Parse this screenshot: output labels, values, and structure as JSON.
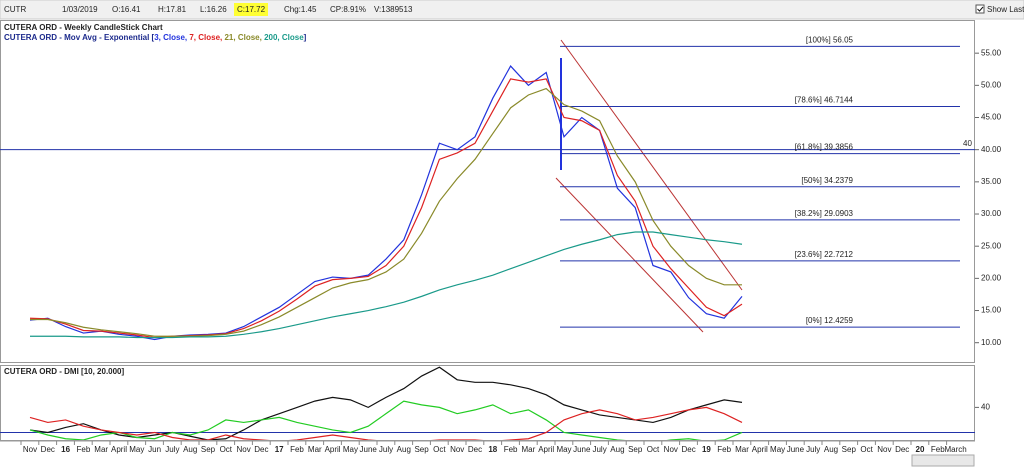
{
  "header": {
    "symbol": "CUTR",
    "date": "1/03/2019",
    "open": "O:16.41",
    "high": "H:17.81",
    "low": "L:16.26",
    "close": "C:17.72",
    "change": "Chg:1.45",
    "change_pct": "CP:8.91%",
    "volume": "V:1389513",
    "show_last": "Show Last"
  },
  "chart_data": [
    {
      "type": "line",
      "title": "CUTERA ORD - Weekly CandleStick Chart",
      "legend": [
        {
          "text": "CUTERA ORD - Mov Avg - Exponential [",
          "color": "#1c2a8c"
        },
        {
          "text": "3, Close, ",
          "color": "#2233dd"
        },
        {
          "text": "7, Close, ",
          "color": "#dd2222"
        },
        {
          "text": "21, Close, ",
          "color": "#8a8a2a"
        },
        {
          "text": "200, Close",
          "color": "#1a9a8a"
        },
        {
          "text": "]",
          "color": "#1c2a8c"
        }
      ],
      "categories": [
        "Nov",
        "Dec",
        "16",
        "Feb",
        "Mar",
        "April",
        "May",
        "Jun",
        "July",
        "Aug",
        "Sep",
        "Oct",
        "Nov",
        "Dec",
        "17",
        "Feb",
        "Mar",
        "April",
        "May",
        "June",
        "July",
        "Aug",
        "Sep",
        "Oct",
        "Nov",
        "Dec",
        "18",
        "Feb",
        "Mar",
        "April",
        "May",
        "June",
        "July",
        "Aug",
        "Sep",
        "Oct",
        "Nov",
        "Dec",
        "19",
        "Feb",
        "Mar",
        "April",
        "May",
        "June",
        "July",
        "Aug",
        "Sep",
        "Oct",
        "Nov",
        "Dec",
        "20",
        "Feb",
        "March"
      ],
      "series": [
        {
          "color": "#2233dd",
          "values": [
            13.5,
            13.8,
            12.5,
            11.5,
            11.8,
            11.3,
            11.0,
            10.5,
            11.0,
            11.2,
            11.3,
            11.5,
            12.5,
            14.0,
            15.5,
            17.5,
            19.5,
            20.2,
            20.0,
            20.5,
            23.0,
            26.0,
            33.0,
            41.0,
            40.0,
            42.0,
            48.0,
            53.0,
            50.0,
            52.0,
            42.0,
            45.0,
            43.0,
            34.0,
            31.0,
            22.0,
            21.0,
            17.0,
            14.5,
            13.8,
            17.2,
            null,
            null,
            null,
            null,
            null,
            null,
            null,
            null,
            null,
            null,
            null,
            null
          ]
        },
        {
          "color": "#dd2222",
          "values": [
            13.8,
            13.7,
            12.9,
            11.9,
            11.8,
            11.5,
            11.2,
            10.8,
            11.0,
            11.1,
            11.2,
            11.4,
            12.2,
            13.4,
            14.9,
            16.8,
            18.8,
            19.8,
            20.0,
            20.3,
            22.0,
            25.0,
            31.0,
            38.5,
            39.5,
            41.0,
            46.0,
            51.0,
            50.5,
            51.0,
            45.0,
            44.5,
            43.0,
            36.0,
            32.0,
            25.0,
            21.5,
            18.5,
            15.5,
            14.2,
            16.0,
            null,
            null,
            null,
            null,
            null,
            null,
            null,
            null,
            null,
            null,
            null,
            null
          ]
        },
        {
          "color": "#8a8a2a",
          "values": [
            13.6,
            13.6,
            13.1,
            12.4,
            12.0,
            11.7,
            11.4,
            11.0,
            11.0,
            11.0,
            11.1,
            11.3,
            11.8,
            12.8,
            14.0,
            15.5,
            17.0,
            18.5,
            19.3,
            19.8,
            21.0,
            23.0,
            27.0,
            32.0,
            35.5,
            38.5,
            42.5,
            46.5,
            48.5,
            49.5,
            47.0,
            46.0,
            44.5,
            39.0,
            35.0,
            29.0,
            25.0,
            22.0,
            20.0,
            19.0,
            19.0,
            null,
            null,
            null,
            null,
            null,
            null,
            null,
            null,
            null,
            null,
            null,
            null
          ]
        },
        {
          "color": "#1a9a8a",
          "values": [
            11.0,
            11.0,
            11.0,
            10.9,
            10.9,
            10.9,
            10.8,
            10.8,
            10.8,
            10.9,
            10.9,
            11.0,
            11.3,
            11.7,
            12.2,
            12.8,
            13.4,
            14.0,
            14.5,
            15.0,
            15.6,
            16.3,
            17.2,
            18.2,
            19.0,
            19.7,
            20.5,
            21.5,
            22.5,
            23.5,
            24.5,
            25.3,
            26.0,
            26.8,
            27.2,
            27.2,
            26.8,
            26.4,
            26.0,
            25.7,
            25.3,
            null,
            null,
            null,
            null,
            null,
            null,
            null,
            null,
            null,
            null,
            null,
            null
          ]
        }
      ],
      "ylim": [
        7,
        60
      ],
      "yticks": [
        {
          "value": 10,
          "label": "10.00"
        },
        {
          "value": 15,
          "label": "15.00"
        },
        {
          "value": 20,
          "label": "20.00"
        },
        {
          "value": 25,
          "label": "25.00"
        },
        {
          "value": 30,
          "label": "30.00"
        },
        {
          "value": 35,
          "label": "35.00"
        },
        {
          "value": 40,
          "label": "40.00"
        },
        {
          "value": 45,
          "label": "45.00"
        },
        {
          "value": 50,
          "label": "50.00"
        },
        {
          "value": 55,
          "label": "55.00"
        }
      ],
      "hline": 40,
      "fib": [
        {
          "label": "[100%]",
          "value": 56.05
        },
        {
          "label": "[78.6%]",
          "value": 46.7144
        },
        {
          "label": "[61.8%]",
          "value": 39.3856
        },
        {
          "label": "[50%]",
          "value": 34.2379
        },
        {
          "label": "[38.2%]",
          "value": 29.0903
        },
        {
          "label": "[23.6%]",
          "value": 22.7212
        },
        {
          "label": "[0%]",
          "value": 12.4259
        }
      ]
    },
    {
      "type": "line",
      "title": "CUTERA ORD - DMI [10, 20.000]",
      "series": [
        {
          "color": "#111111",
          "values": [
            22,
            20,
            24,
            27,
            22,
            18,
            16,
            18,
            20,
            17,
            14,
            15,
            22,
            30,
            35,
            40,
            45,
            48,
            46,
            40,
            48,
            55,
            65,
            72,
            62,
            60,
            60,
            58,
            55,
            50,
            42,
            38,
            34,
            32,
            30,
            28,
            32,
            38,
            42,
            46,
            44,
            null,
            null,
            null,
            null,
            null,
            null,
            null,
            null,
            null,
            null,
            null,
            null
          ]
        },
        {
          "color": "#22cc22",
          "values": [
            22,
            18,
            15,
            14,
            18,
            20,
            16,
            15,
            20,
            18,
            22,
            30,
            28,
            30,
            32,
            28,
            25,
            22,
            20,
            25,
            35,
            45,
            42,
            40,
            35,
            38,
            42,
            35,
            38,
            30,
            20,
            18,
            16,
            14,
            13,
            12,
            14,
            15,
            13,
            14,
            20,
            null,
            null,
            null,
            null,
            null,
            null,
            null,
            null,
            null,
            null,
            null,
            null
          ]
        },
        {
          "color": "#dd2222",
          "values": [
            32,
            28,
            30,
            25,
            22,
            20,
            18,
            20,
            16,
            14,
            14,
            18,
            15,
            14,
            13,
            14,
            16,
            18,
            16,
            14,
            13,
            12,
            13,
            14,
            14,
            14,
            13,
            14,
            15,
            20,
            30,
            35,
            38,
            35,
            30,
            32,
            35,
            38,
            40,
            35,
            28,
            null,
            null,
            null,
            null,
            null,
            null,
            null,
            null,
            null,
            null,
            null,
            null
          ]
        }
      ],
      "ylim": [
        14,
        73
      ],
      "yticks": [
        40
      ],
      "hline": 20
    }
  ]
}
